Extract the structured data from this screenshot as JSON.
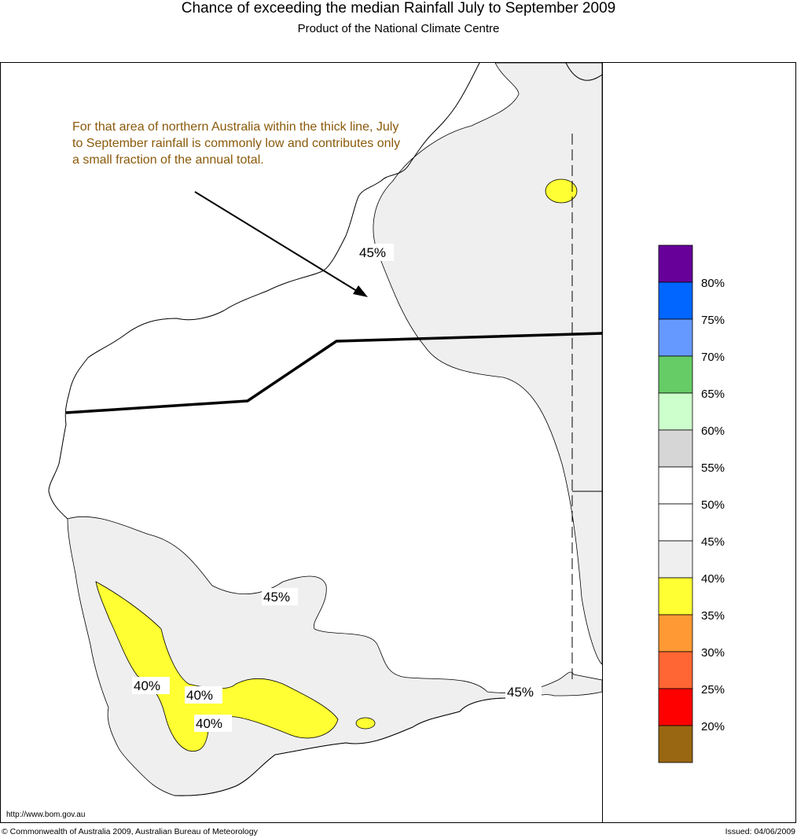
{
  "header": {
    "title": "Chance of exceeding the median Rainfall July to September 2009",
    "subtitle": "Product of the National Climate Centre"
  },
  "annotation": {
    "text": "For that area of northern Australia within the thick line, July to September rainfall is commonly low and contributes only a small fraction of the annual total."
  },
  "contour_labels": [
    "45%",
    "45%",
    "45%",
    "40%",
    "40%",
    "40%"
  ],
  "legend": {
    "labels": [
      "80%",
      "75%",
      "70%",
      "65%",
      "60%",
      "55%",
      "50%",
      "45%",
      "40%",
      "35%",
      "30%",
      "25%",
      "20%"
    ],
    "colors": [
      "#660099",
      "#0066ff",
      "#6699ff",
      "#66cc66",
      "#ccffcc",
      "#d6d6d6",
      "#ffffff",
      "#ffffff",
      "#efefef",
      "#ffff33",
      "#ff9933",
      "#ff6633",
      "#ff0000",
      "#996611"
    ]
  },
  "colors": {
    "band_40_45": "#efefef",
    "band_35_40": "#ffff33",
    "note_text": "#8B5A0B"
  },
  "footer": {
    "url": "http://www.bom.gov.au",
    "copyright": "© Commonwealth of Australia 2009, Australian Bureau of Meteorology",
    "issued": "Issued: 04/06/2009"
  }
}
